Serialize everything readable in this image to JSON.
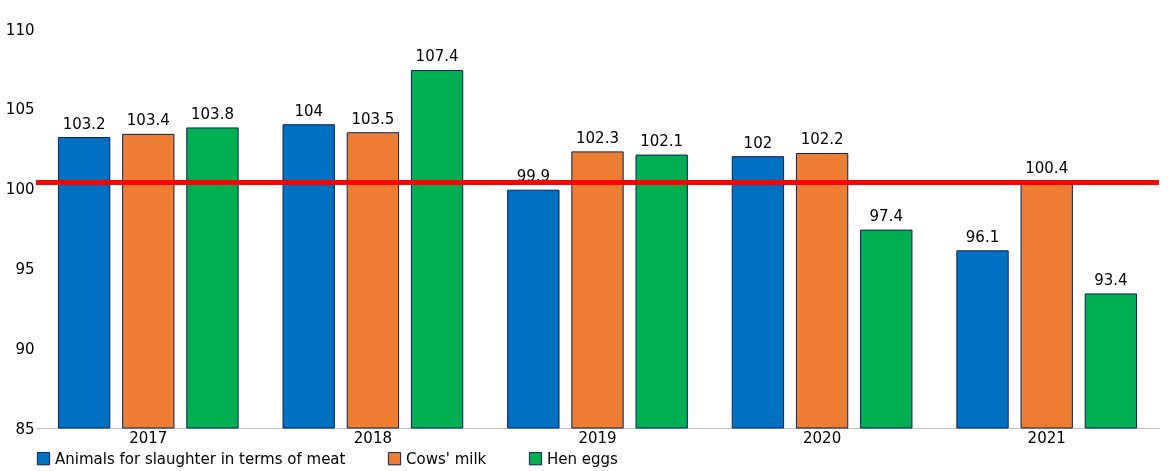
{
  "chart_data": {
    "type": "bar",
    "categories": [
      "2017",
      "2018",
      "2019",
      "2020",
      "2021"
    ],
    "series": [
      {
        "name": "Animals for slaughter in terms of meat",
        "color": "#0070c0",
        "values": [
          103.2,
          104,
          99.9,
          102,
          96.1
        ]
      },
      {
        "name": "Cows' milk",
        "color": "#ed7d31",
        "values": [
          103.4,
          103.5,
          102.3,
          102.2,
          100.4
        ]
      },
      {
        "name": "Hen eggs",
        "color": "#00b050",
        "values": [
          103.8,
          107.4,
          102.1,
          97.4,
          93.4
        ]
      }
    ],
    "ylim": [
      85,
      110
    ],
    "yticks": [
      85,
      90,
      95,
      100,
      105,
      110
    ],
    "grid": false,
    "legend": "bottom",
    "data_labels": true,
    "ref_lines": [
      {
        "axis": "y",
        "value": 100.4,
        "color": "#ff0000"
      }
    ]
  }
}
